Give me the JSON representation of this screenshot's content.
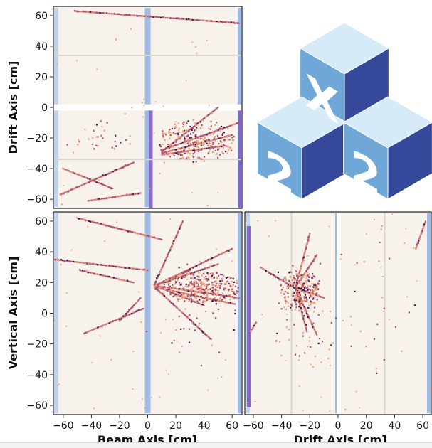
{
  "colors": {
    "background": "#f7f3ec",
    "pixel_gap": "#ffffff",
    "module_boundary": "#d9d5d0",
    "light_det": "#7aa3e0",
    "light_det_pale": "#b5cdee",
    "light_det_purple": "#7a4fc9",
    "hit_low": "#f0a07a",
    "hit_mid": "#b0506a",
    "hit_high": "#3a1a4a",
    "logo_top": "#d6ebf7",
    "logo_left": "#6fa8d8",
    "logo_right": "#35489a"
  },
  "logo": {
    "text_top": "X",
    "text_left": "2",
    "text_right": "2",
    "icon": "cube-stack-logo"
  },
  "chart_data": [
    {
      "type": "scatter",
      "name": "top-view",
      "title": "",
      "xlabel": "",
      "ylabel": "Drift Axis [cm]",
      "xlim": [
        -67,
        67
      ],
      "ylim": [
        -66,
        66
      ],
      "xticks": [],
      "yticks": [
        -60,
        -40,
        -20,
        0,
        20,
        40,
        60
      ],
      "tracks": [
        {
          "from": [
            -52,
            63
          ],
          "to": [
            65,
            55
          ]
        },
        {
          "from": [
            -62,
            -57
          ],
          "to": [
            -10,
            -36
          ]
        },
        {
          "from": [
            -60,
            -40
          ],
          "to": [
            -25,
            -53
          ]
        },
        {
          "from": [
            -42,
            -61
          ],
          "to": [
            -5,
            -56
          ]
        },
        {
          "from": [
            10,
            -28
          ],
          "to": [
            65,
            -10
          ]
        },
        {
          "from": [
            10,
            -30
          ],
          "to": [
            60,
            -18
          ]
        },
        {
          "from": [
            10,
            -31
          ],
          "to": [
            55,
            -25
          ]
        },
        {
          "from": [
            10,
            -29
          ],
          "to": [
            50,
            0
          ]
        }
      ],
      "hit_clusters": [
        {
          "cx": 35,
          "cy": -22,
          "rx": 28,
          "ry": 14,
          "n": 260
        },
        {
          "cx": -35,
          "cy": -20,
          "rx": 25,
          "ry": 12,
          "n": 30
        }
      ]
    },
    {
      "type": "scatter",
      "name": "side-view",
      "title": "",
      "xlabel": "Beam Axis [cm]",
      "ylabel": "Vertical Axis [cm]",
      "xlim": [
        -67,
        67
      ],
      "ylim": [
        -66,
        66
      ],
      "xticks": [
        -60,
        -40,
        -20,
        0,
        20,
        40,
        60
      ],
      "yticks": [
        -60,
        -40,
        -20,
        0,
        20,
        40,
        60
      ],
      "tracks": [
        {
          "from": [
            -50,
            62
          ],
          "to": [
            10,
            48
          ]
        },
        {
          "from": [
            -66,
            35
          ],
          "to": [
            0,
            28
          ]
        },
        {
          "from": [
            -48,
            28
          ],
          "to": [
            -10,
            20
          ]
        },
        {
          "from": [
            -45,
            -13
          ],
          "to": [
            -3,
            3
          ]
        },
        {
          "from": [
            -20,
            -5
          ],
          "to": [
            -5,
            10
          ]
        },
        {
          "from": [
            5,
            18
          ],
          "to": [
            60,
            42
          ]
        },
        {
          "from": [
            5,
            18
          ],
          "to": [
            50,
            32
          ]
        },
        {
          "from": [
            5,
            17
          ],
          "to": [
            45,
            -17
          ]
        },
        {
          "from": [
            5,
            19
          ],
          "to": [
            25,
            60
          ]
        },
        {
          "from": [
            5,
            18
          ],
          "to": [
            65,
            10
          ]
        },
        {
          "from": [
            5,
            17
          ],
          "to": [
            62,
            6
          ]
        },
        {
          "from": [
            5,
            18
          ],
          "to": [
            40,
            5
          ]
        },
        {
          "from": [
            5,
            18
          ],
          "to": [
            30,
            28
          ]
        }
      ],
      "hit_clusters": [
        {
          "cx": 38,
          "cy": 17,
          "rx": 28,
          "ry": 10,
          "n": 320
        },
        {
          "cx": 30,
          "cy": 0,
          "rx": 35,
          "ry": 40,
          "n": 50
        }
      ]
    },
    {
      "type": "scatter",
      "name": "front-view",
      "title": "",
      "xlabel": "Drift Axis [cm]",
      "ylabel": "",
      "xlim": [
        -66,
        66
      ],
      "ylim": [
        -66,
        66
      ],
      "xticks": [
        -60,
        -40,
        -20,
        0,
        20,
        40,
        60
      ],
      "yticks": [],
      "tracks": [
        {
          "from": [
            -30,
            17
          ],
          "to": [
            -20,
            52
          ]
        },
        {
          "from": [
            -30,
            17
          ],
          "to": [
            -15,
            38
          ]
        },
        {
          "from": [
            -30,
            16
          ],
          "to": [
            -55,
            30
          ]
        },
        {
          "from": [
            -30,
            17
          ],
          "to": [
            -10,
            10
          ]
        },
        {
          "from": [
            -30,
            16
          ],
          "to": [
            -15,
            -14
          ]
        },
        {
          "from": [
            -30,
            16
          ],
          "to": [
            -22,
            -12
          ]
        },
        {
          "from": [
            55,
            42
          ],
          "to": [
            62,
            60
          ]
        },
        {
          "from": [
            -62,
            -12
          ],
          "to": [
            -58,
            -6
          ]
        }
      ],
      "hit_clusters": [
        {
          "cx": -27,
          "cy": 15,
          "rx": 14,
          "ry": 14,
          "n": 260
        },
        {
          "cx": -25,
          "cy": 0,
          "rx": 25,
          "ry": 40,
          "n": 60
        },
        {
          "cx": 25,
          "cy": 10,
          "rx": 30,
          "ry": 50,
          "n": 25
        }
      ]
    }
  ]
}
